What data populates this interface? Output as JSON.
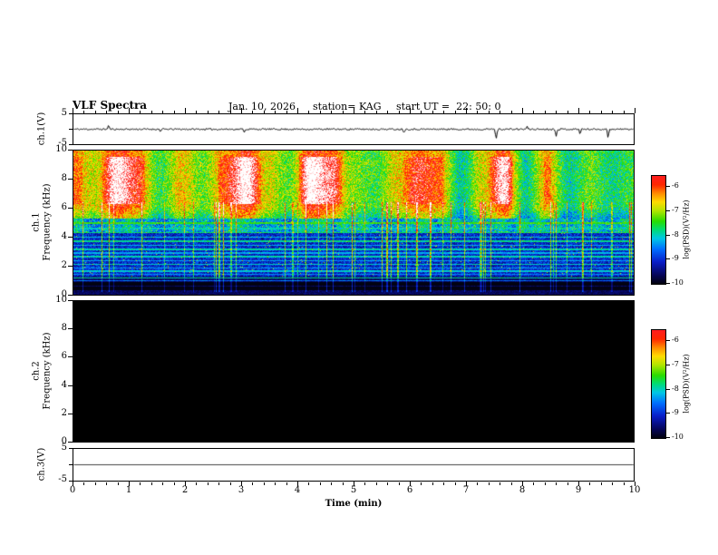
{
  "header": {
    "title": "VLF Spectra",
    "date": "Jan. 10, 2026",
    "station": "station= KAG",
    "start_ut": "start UT =  22: 50: 0"
  },
  "panels": {
    "ch1_wave": {
      "label": "ch.1(V)",
      "ymax": "5",
      "ymin": "-5"
    },
    "ch1_spec": {
      "name": "ch.1",
      "axis_label": "Frequency (kHz)",
      "yticks": [
        "10",
        "8",
        "6",
        "4",
        "2",
        "0"
      ]
    },
    "ch2_spec": {
      "name": "ch.2",
      "axis_label": "Frequency (kHz)",
      "yticks": [
        "10",
        "8",
        "6",
        "4",
        "2",
        "0"
      ]
    },
    "ch3_wave": {
      "label": "ch.3(V)",
      "ymax": "5",
      "ymin": "-5"
    }
  },
  "xaxis": {
    "label": "Time (min)",
    "ticks": [
      "0",
      "1",
      "2",
      "3",
      "4",
      "5",
      "6",
      "7",
      "8",
      "9",
      "10"
    ]
  },
  "colorbar": {
    "label": "log(PSD)(V²/Hz)",
    "ticks": [
      "-6",
      "-7",
      "-8",
      "-9",
      "-10"
    ],
    "vmax": -5.5,
    "vmin": -10,
    "gradient_stops": [
      {
        "t": 0.0,
        "c": [
          2,
          2,
          18
        ]
      },
      {
        "t": 0.08,
        "c": [
          6,
          6,
          90
        ]
      },
      {
        "t": 0.2,
        "c": [
          10,
          30,
          200
        ]
      },
      {
        "t": 0.32,
        "c": [
          0,
          110,
          255
        ]
      },
      {
        "t": 0.42,
        "c": [
          0,
          200,
          230
        ]
      },
      {
        "t": 0.5,
        "c": [
          0,
          220,
          120
        ]
      },
      {
        "t": 0.58,
        "c": [
          40,
          220,
          0
        ]
      },
      {
        "t": 0.68,
        "c": [
          180,
          230,
          0
        ]
      },
      {
        "t": 0.76,
        "c": [
          255,
          220,
          0
        ]
      },
      {
        "t": 0.84,
        "c": [
          255,
          140,
          0
        ]
      },
      {
        "t": 0.92,
        "c": [
          255,
          40,
          0
        ]
      },
      {
        "t": 1.0,
        "c": [
          255,
          30,
          30
        ]
      }
    ]
  },
  "chart_data": [
    {
      "type": "line",
      "name": "ch.1(V) time series",
      "xlabel": "Time (min)",
      "xlim": [
        0,
        10
      ],
      "ylim": [
        -5,
        5
      ],
      "baseline": 0,
      "noise_amp": 0.28,
      "seed": 11,
      "spikes": [
        {
          "t": 0.62,
          "a": 1.4
        },
        {
          "t": 1.55,
          "a": -0.8
        },
        {
          "t": 3.05,
          "a": -0.9
        },
        {
          "t": 5.9,
          "a": -1.0
        },
        {
          "t": 7.55,
          "a": -3.6
        },
        {
          "t": 8.1,
          "a": 0.9
        },
        {
          "t": 8.62,
          "a": -2.3
        },
        {
          "t": 9.05,
          "a": -1.6
        },
        {
          "t": 9.55,
          "a": -2.9
        }
      ],
      "description": "Noisy baseline near 0 V with sporadic impulsive spikes"
    },
    {
      "type": "heatmap",
      "name": "ch.1 VLF spectrogram",
      "xlabel": "Time (min)",
      "ylabel": "Frequency (kHz)",
      "xlim": [
        0,
        10
      ],
      "ylim": [
        0,
        10
      ],
      "zlabel": "log(PSD)(V²/Hz)",
      "zlim": [
        -10,
        -5.5
      ],
      "description": "Intense broadband emission (-7 to -5.5) above ~5.5 kHz with saturated white cores between 6.5 and 9.5 kHz; green/cyan horizontal harmonic bands below 5 kHz over a blue background; many narrow vertical sferic lines; near-black band structure below 1 kHz",
      "render": {
        "seed": 42,
        "sferic_prob": 0.1,
        "bands": [
          {
            "f": 4.95,
            "v": -7.4,
            "w": 0.05
          },
          {
            "f": 4.6,
            "v": -8.0,
            "w": 0.05
          },
          {
            "f": 4.3,
            "v": -7.7,
            "w": 0.05
          },
          {
            "f": 4.0,
            "v": -8.1,
            "w": 0.05
          },
          {
            "f": 3.7,
            "v": -7.8,
            "w": 0.05
          },
          {
            "f": 3.42,
            "v": -8.2,
            "w": 0.04
          },
          {
            "f": 3.15,
            "v": -7.9,
            "w": 0.05
          },
          {
            "f": 2.88,
            "v": -8.25,
            "w": 0.04
          },
          {
            "f": 2.62,
            "v": -7.95,
            "w": 0.05
          },
          {
            "f": 2.35,
            "v": -8.3,
            "w": 0.04
          },
          {
            "f": 2.1,
            "v": -8.0,
            "w": 0.05
          },
          {
            "f": 1.85,
            "v": -8.35,
            "w": 0.04
          },
          {
            "f": 1.6,
            "v": -8.05,
            "w": 0.05
          },
          {
            "f": 1.38,
            "v": -8.4,
            "w": 0.04
          },
          {
            "f": 1.15,
            "v": -7.9,
            "w": 0.05
          },
          {
            "f": 0.95,
            "v": -8.6,
            "w": 0.04
          }
        ],
        "black_bands": [
          [
            0.28,
            0.52
          ],
          [
            0.62,
            0.88
          ]
        ]
      }
    },
    {
      "type": "heatmap",
      "name": "ch.2 VLF spectrogram",
      "xlim": [
        0,
        10
      ],
      "ylim": [
        0,
        10
      ],
      "zlim": [
        -10,
        -5.5
      ],
      "description": "No data - uniform black (at/below -10)",
      "render": {
        "fill": "#000000"
      }
    },
    {
      "type": "line",
      "name": "ch.3(V) time series",
      "xlim": [
        0,
        10
      ],
      "ylim": [
        -5,
        5
      ],
      "baseline": 0,
      "noise_amp": 0,
      "seed": 1,
      "spikes": [],
      "description": "Flat line at 0 V"
    }
  ]
}
